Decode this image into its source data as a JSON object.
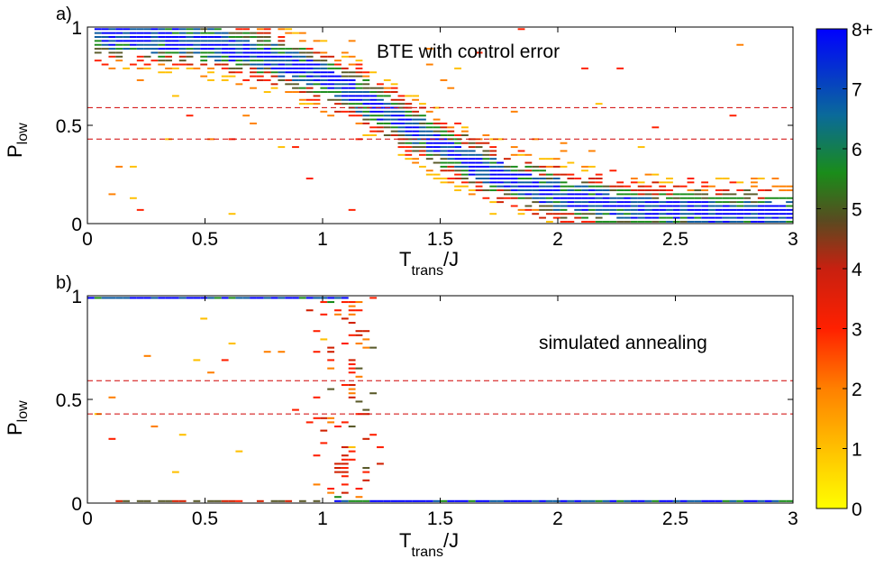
{
  "colors": {
    "threshold_line": "#d00000",
    "colormap": [
      "#ffff00",
      "#ffc000",
      "#ff8000",
      "#ff2000",
      "#d02000",
      "#5a5a2a",
      "#1a8c1a",
      "#0a5aa0",
      "#0000ff"
    ]
  },
  "chart_data": [
    {
      "type": "heatmap",
      "panel_label": "a)",
      "annotation": "BTE with control error",
      "xlabel": "T",
      "xlabel_sub": "trans",
      "xlabel_suffix": "/J",
      "ylabel": "P",
      "ylabel_sub": "low",
      "xlim": [
        0,
        3
      ],
      "ylim": [
        0,
        1
      ],
      "xticks": [
        0,
        0.5,
        1,
        1.5,
        2,
        2.5,
        3
      ],
      "xtick_labels": [
        "0",
        "0.5",
        "1",
        "1.5",
        "2",
        "2.5",
        "3"
      ],
      "yticks": [
        0,
        0.5,
        1
      ],
      "ytick_labels": [
        "0",
        "0.5",
        "1"
      ],
      "hlines": [
        0.59,
        0.43
      ],
      "density": {
        "mode": "sigmoid_band",
        "x_range": [
          0.02,
          3.0
        ],
        "y_high": 0.98,
        "y_low": 0.04,
        "midpoint_x": 1.35,
        "width": 0.32,
        "spread": 0.09,
        "peak_counts": 8,
        "scatter_fraction": 0.12
      }
    },
    {
      "type": "heatmap",
      "panel_label": "b)",
      "annotation": "simulated annealing",
      "xlabel": "T",
      "xlabel_sub": "trans",
      "xlabel_suffix": "/J",
      "ylabel": "P",
      "ylabel_sub": "low",
      "xlim": [
        0,
        3
      ],
      "ylim": [
        0,
        1
      ],
      "xticks": [
        0,
        0.5,
        1,
        1.5,
        2,
        2.5,
        3
      ],
      "xtick_labels": [
        "0",
        "0.5",
        "1",
        "1.5",
        "2",
        "2.5",
        "3"
      ],
      "yticks": [
        0,
        0.5,
        1
      ],
      "ytick_labels": [
        "0",
        "0.5",
        "1"
      ],
      "hlines": [
        0.59,
        0.43
      ],
      "density": {
        "mode": "bimodal_edges",
        "top_band_x": [
          0.0,
          1.1
        ],
        "bottom_band_x": [
          1.05,
          3.0
        ],
        "transition_x": [
          0.9,
          1.3
        ],
        "peak_counts": 8,
        "scatter_fraction": 0.18
      }
    }
  ],
  "colorbar": {
    "ticks": [
      "0",
      "1",
      "2",
      "3",
      "4",
      "5",
      "6",
      "7",
      "8+"
    ],
    "range": [
      0,
      8
    ]
  }
}
